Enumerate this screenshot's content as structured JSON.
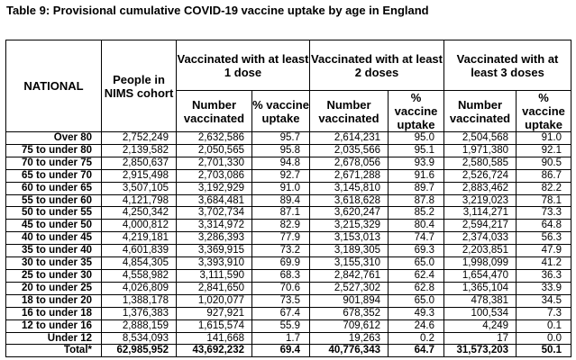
{
  "title": "Table 9: Provisional cumulative COVID-19 vaccine uptake by age in England",
  "headers": {
    "national": "NATIONAL",
    "cohort": "People in NIMS cohort",
    "dose1": "Vaccinated with at least 1 dose",
    "dose2": "Vaccinated with at least 2 doses",
    "dose3": "Vaccinated with at least 3 doses",
    "number": "Number vaccinated",
    "pct": "% vaccine uptake"
  },
  "rows": [
    [
      "Over 80",
      "2,752,249",
      "2,632,586",
      "95.7",
      "2,614,231",
      "95.0",
      "2,504,568",
      "91.0"
    ],
    [
      "75 to under 80",
      "2,139,582",
      "2,050,565",
      "95.8",
      "2,035,566",
      "95.1",
      "1,971,380",
      "92.1"
    ],
    [
      "70 to under 75",
      "2,850,637",
      "2,701,330",
      "94.8",
      "2,678,056",
      "93.9",
      "2,580,585",
      "90.5"
    ],
    [
      "65 to under 70",
      "2,915,498",
      "2,703,086",
      "92.7",
      "2,671,288",
      "91.6",
      "2,526,724",
      "86.7"
    ],
    [
      "60 to under 65",
      "3,507,105",
      "3,192,929",
      "91.0",
      "3,145,810",
      "89.7",
      "2,883,462",
      "82.2"
    ],
    [
      "55 to under 60",
      "4,121,798",
      "3,684,481",
      "89.4",
      "3,618,628",
      "87.8",
      "3,219,023",
      "78.1"
    ],
    [
      "50 to under 55",
      "4,250,342",
      "3,702,734",
      "87.1",
      "3,620,247",
      "85.2",
      "3,114,271",
      "73.3"
    ],
    [
      "45 to under 50",
      "4,000,812",
      "3,314,972",
      "82.9",
      "3,215,329",
      "80.4",
      "2,594,217",
      "64.8"
    ],
    [
      "40 to under 45",
      "4,219,181",
      "3,286,393",
      "77.9",
      "3,153,013",
      "74.7",
      "2,374,033",
      "56.3"
    ],
    [
      "35 to under 40",
      "4,601,839",
      "3,369,915",
      "73.2",
      "3,189,305",
      "69.3",
      "2,203,851",
      "47.9"
    ],
    [
      "30 to under 35",
      "4,854,305",
      "3,393,910",
      "69.9",
      "3,155,310",
      "65.0",
      "1,998,099",
      "41.2"
    ],
    [
      "25 to under 30",
      "4,558,982",
      "3,111,590",
      "68.3",
      "2,842,761",
      "62.4",
      "1,654,470",
      "36.3"
    ],
    [
      "20 to under 25",
      "4,026,809",
      "2,841,650",
      "70.6",
      "2,527,302",
      "62.8",
      "1,365,104",
      "33.9"
    ],
    [
      "18 to under 20",
      "1,388,178",
      "1,020,077",
      "73.5",
      "901,894",
      "65.0",
      "478,381",
      "34.5"
    ],
    [
      "16 to under 18",
      "1,376,383",
      "927,921",
      "67.4",
      "678,352",
      "49.3",
      "100,534",
      "7.3"
    ],
    [
      "12 to under 16",
      "2,888,159",
      "1,615,574",
      "55.9",
      "709,612",
      "24.6",
      "4,249",
      "0.1"
    ],
    [
      "Under 12",
      "8,534,093",
      "141,668",
      "1.7",
      "19,263",
      "0.2",
      "17",
      "0.0"
    ]
  ],
  "total": [
    "Total*",
    "62,985,952",
    "43,692,232",
    "69.4",
    "40,776,343",
    "64.7",
    "31,573,203",
    "50.1"
  ]
}
